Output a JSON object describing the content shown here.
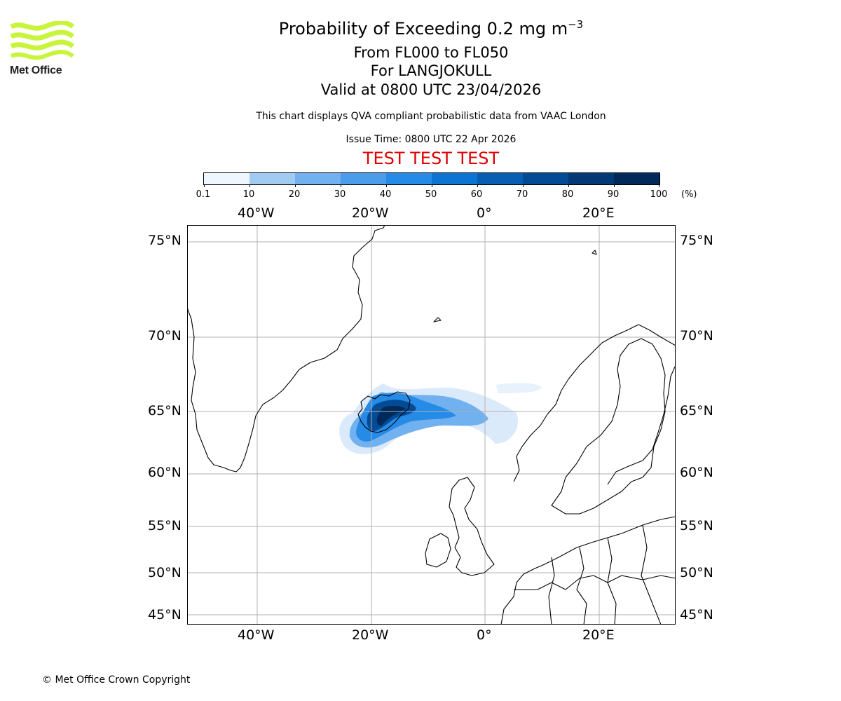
{
  "header": {
    "title_prefix": "Probability of Exceeding 0.2 mg m",
    "title_exponent": "−3",
    "flight_levels": "From FL000 to FL050",
    "location": "For LANGJOKULL",
    "valid_time": "Valid at 0800 UTC 23/04/2026",
    "disclaimer": "This chart displays QVA compliant probabilistic data from VAAC London",
    "issue_time": "Issue Time: 0800 UTC 22 Apr 2026",
    "test_banner": "TEST TEST TEST"
  },
  "logo": {
    "text": "Met Office",
    "color": "#c8f53b"
  },
  "colorbar": {
    "labels": [
      "0.1",
      "10",
      "20",
      "30",
      "40",
      "50",
      "60",
      "70",
      "80",
      "90",
      "100"
    ],
    "unit": "(%)",
    "colors": [
      "#eef6ff",
      "#c8e1fa",
      "#a2cbf4",
      "#71b1ef",
      "#4b9ceb",
      "#268be6",
      "#0d74d4",
      "#075eb3",
      "#034b95",
      "#033a75",
      "#01295a"
    ]
  },
  "map": {
    "lon_labels_top": [
      "40°W",
      "20°W",
      "0°",
      "20°E"
    ],
    "lon_labels_bottom": [
      "40°W",
      "20°W",
      "0°",
      "20°E"
    ],
    "lat_labels_left": [
      "75°N",
      "70°N",
      "65°N",
      "60°N",
      "55°N",
      "50°N",
      "45°N"
    ],
    "lat_labels_right": [
      "75°N",
      "70°N",
      "65°N",
      "60°N",
      "55°N",
      "50°N",
      "45°N"
    ],
    "grid_color": "#b0b0b0",
    "coast_color": "#000000"
  },
  "footer": {
    "copyright": "© Met Office Crown Copyright"
  }
}
